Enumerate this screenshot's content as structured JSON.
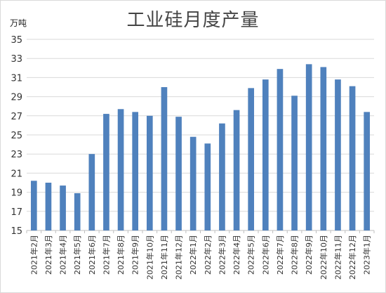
{
  "chart_data": {
    "type": "bar",
    "title": "工业硅月度产量",
    "ylabel": "万吨",
    "xlabel": "",
    "ylim": [
      15,
      35
    ],
    "yticks": [
      15,
      17,
      19,
      21,
      23,
      25,
      27,
      29,
      31,
      33,
      35
    ],
    "grid": true,
    "legend": "none",
    "bar_color": "#4F81BD",
    "categories": [
      "2021年2月",
      "2021年3月",
      "2021年4月",
      "2021年5月",
      "2021年6月",
      "2021年7月",
      "2021年8月",
      "2021年9月",
      "2021年10月",
      "2021年11月",
      "2021年12月",
      "2022年1月",
      "2022年2月",
      "2022年3月",
      "2022年4月",
      "2022年5月",
      "2022年6月",
      "2022年7月",
      "2022年8月",
      "2022年9月",
      "2022年10月",
      "2022年11月",
      "2022年12月",
      "2023年1月"
    ],
    "values": [
      20.2,
      20.0,
      19.7,
      18.9,
      23.0,
      27.2,
      27.7,
      27.4,
      27.0,
      30.0,
      26.9,
      24.8,
      24.1,
      26.2,
      27.6,
      29.9,
      30.8,
      31.9,
      29.1,
      32.4,
      32.1,
      30.8,
      30.1,
      27.4
    ]
  }
}
